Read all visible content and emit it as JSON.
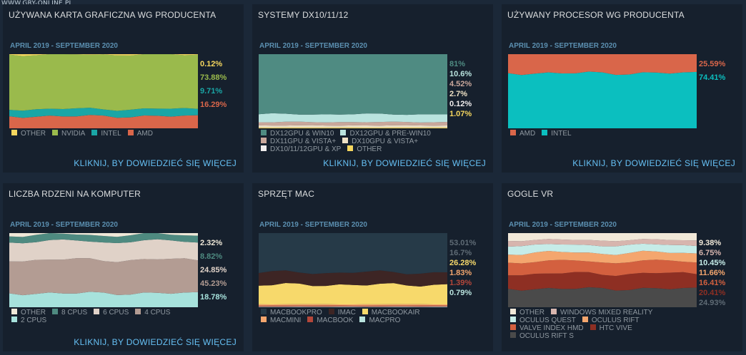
{
  "watermark": "WWW.GRY-ONLINE.PL",
  "more_label": "KLIKNIJ, BY DOWIEDZIEĆ SIĘ WIĘCEJ",
  "panels": [
    {
      "title": "UŻYWANA KARTA GRAFICZNA WG PRODUCENTA",
      "range": "APRIL 2019 - SEPTEMBER 2020",
      "chart_data": {
        "type": "area",
        "stacked": "percent",
        "series": [
          {
            "name": "OTHER",
            "value": 0.12,
            "label": "0.12%",
            "color": "#f6d75f"
          },
          {
            "name": "NVIDIA",
            "value": 73.88,
            "label": "73.88%",
            "color": "#9aba4c"
          },
          {
            "name": "INTEL",
            "value": 9.71,
            "label": "9.71%",
            "color": "#1aa6a6"
          },
          {
            "name": "AMD",
            "value": 16.29,
            "label": "16.29%",
            "color": "#d9664a"
          }
        ]
      },
      "legend": [
        {
          "name": "OTHER",
          "color": "#f6d75f"
        },
        {
          "name": "NVIDIA",
          "color": "#9aba4c"
        },
        {
          "name": "INTEL",
          "color": "#1aa6a6"
        },
        {
          "name": "AMD",
          "color": "#d9664a"
        }
      ]
    },
    {
      "title": "SYSTEMY DX10/11/12",
      "range": "APRIL 2019 - SEPTEMBER 2020",
      "chart_data": {
        "type": "area",
        "stacked": "percent",
        "series": [
          {
            "name": "DX12GPU & WIN10",
            "value": 81,
            "label": "81%",
            "color": "#4f8b82"
          },
          {
            "name": "DX12GPU & PRE-WIN10",
            "value": 10.6,
            "label": "10.6%",
            "color": "#b9e3de"
          },
          {
            "name": "DX11GPU & VISTA+",
            "value": 4.52,
            "label": "4.52%",
            "color": "#c9a79b"
          },
          {
            "name": "DX10GPU & VISTA+",
            "value": 2.7,
            "label": "2.7%",
            "color": "#efe2c6"
          },
          {
            "name": "DX10/11/12GPU & XP",
            "value": 0.12,
            "label": "0.12%",
            "color": "#f0eded"
          },
          {
            "name": "OTHER",
            "value": 1.07,
            "label": "1.07%",
            "color": "#f6d75f"
          }
        ]
      },
      "legend": [
        {
          "name": "DX12GPU & WIN10",
          "color": "#4f8b82"
        },
        {
          "name": "DX12GPU & PRE-WIN10",
          "color": "#b9e3de"
        },
        {
          "name": "DX11GPU & VISTA+",
          "color": "#c9a79b"
        },
        {
          "name": "DX10GPU & VISTA+",
          "color": "#efe2c6"
        },
        {
          "name": "DX10/11/12GPU & XP",
          "color": "#f0eded"
        },
        {
          "name": "OTHER",
          "color": "#f6d75f"
        }
      ]
    },
    {
      "title": "UŻYWANY PROCESOR WG PRODUCENTA",
      "range": "APRIL 2019 - SEPTEMBER 2020",
      "chart_data": {
        "type": "area",
        "stacked": "percent",
        "series": [
          {
            "name": "AMD",
            "value": 25.59,
            "label": "25.59%",
            "color": "#d9664a"
          },
          {
            "name": "INTEL",
            "value": 74.41,
            "label": "74.41%",
            "color": "#0bbfbf"
          }
        ]
      },
      "legend": [
        {
          "name": "AMD",
          "color": "#d9664a"
        },
        {
          "name": "INTEL",
          "color": "#0bbfbf"
        }
      ]
    },
    {
      "title": "LICZBA RDZENI NA KOMPUTER",
      "range": "APRIL 2019 - SEPTEMBER 2020",
      "chart_data": {
        "type": "area",
        "stacked": "percent",
        "series": [
          {
            "name": "OTHER",
            "value": 2.32,
            "label": "2.32%",
            "color": "#efe8d8"
          },
          {
            "name": "8 CPUS",
            "value": 8.82,
            "label": "8.82%",
            "color": "#4e8a80"
          },
          {
            "name": "6 CPUS",
            "value": 24.85,
            "label": "24.85%",
            "color": "#e0d2c8"
          },
          {
            "name": "4 CPUS",
            "value": 45.23,
            "label": "45.23%",
            "color": "#b39c93"
          },
          {
            "name": "2 CPUS",
            "value": 18.78,
            "label": "18.78%",
            "color": "#a7e2dc"
          }
        ]
      },
      "legend": [
        {
          "name": "OTHER",
          "color": "#efe8d8"
        },
        {
          "name": "8 CPUS",
          "color": "#4e8a80"
        },
        {
          "name": "6 CPUS",
          "color": "#e0d2c8"
        },
        {
          "name": "4 CPUS",
          "color": "#b39c93"
        },
        {
          "name": "2 CPUS",
          "color": "#a7e2dc"
        }
      ]
    },
    {
      "title": "SPRZĘT MAC",
      "range": "APRIL 2019 - SEPTEMBER 2020",
      "chart_data": {
        "type": "area",
        "stacked": "percent",
        "series": [
          {
            "name": "MACBOOKPRO",
            "value": 53.01,
            "label": "53.01%",
            "color": "#263a48"
          },
          {
            "name": "IMAC",
            "value": 16.7,
            "label": "16.7%",
            "color": "#3d2524"
          },
          {
            "name": "MACBOOKAIR",
            "value": 26.28,
            "label": "26.28%",
            "color": "#f7d96b"
          },
          {
            "name": "MACMINI",
            "value": 1.83,
            "label": "1.83%",
            "color": "#f4a66e"
          },
          {
            "name": "MACBOOK",
            "value": 1.39,
            "label": "1.39%",
            "color": "#b4473a"
          },
          {
            "name": "MACPRO",
            "value": 0.79,
            "label": "0.79%",
            "color": "#b9e3de"
          }
        ]
      },
      "legend": [
        {
          "name": "MACBOOKPRO",
          "color": "#263a48"
        },
        {
          "name": "IMAC",
          "color": "#3d2524"
        },
        {
          "name": "MACBOOKAIR",
          "color": "#f7d96b"
        },
        {
          "name": "MACMINI",
          "color": "#f4a66e"
        },
        {
          "name": "MACBOOK",
          "color": "#b4473a"
        },
        {
          "name": "MACPRO",
          "color": "#b9e3de"
        }
      ]
    },
    {
      "title": "GOGLE VR",
      "range": "APRIL 2019 - SEPTEMBER 2020",
      "chart_data": {
        "type": "area",
        "stacked": "percent",
        "series": [
          {
            "name": "OTHER",
            "value": 9.38,
            "label": "9.38%",
            "color": "#f1e8d8"
          },
          {
            "name": "WINDOWS MIXED REALITY",
            "value": 6.75,
            "label": "6.75%",
            "color": "#d7b5ae"
          },
          {
            "name": "OCULUS QUEST",
            "value": 10.45,
            "label": "10.45%",
            "color": "#c6ece8"
          },
          {
            "name": "OCULUS RIFT",
            "value": 11.66,
            "label": "11.66%",
            "color": "#f4a66e"
          },
          {
            "name": "VALVE INDEX HMD",
            "value": 16.41,
            "label": "16.41%",
            "color": "#d3603f"
          },
          {
            "name": "HTC VIVE",
            "value": 20.41,
            "label": "20.41%",
            "color": "#8e2f23"
          },
          {
            "name": "OCULUS RIFT S",
            "value": 24.93,
            "label": "24.93%",
            "color": "#4a4a4a"
          }
        ]
      },
      "legend": [
        {
          "name": "OTHER",
          "color": "#f1e8d8"
        },
        {
          "name": "WINDOWS MIXED REALITY",
          "color": "#d7b5ae"
        },
        {
          "name": "OCULUS QUEST",
          "color": "#c6ece8"
        },
        {
          "name": "OCULUS RIFT",
          "color": "#f4a66e"
        },
        {
          "name": "VALVE INDEX HMD",
          "color": "#d3603f"
        },
        {
          "name": "HTC VIVE",
          "color": "#8e2f23"
        },
        {
          "name": "OCULUS RIFT S",
          "color": "#4a4a4a"
        }
      ]
    }
  ]
}
